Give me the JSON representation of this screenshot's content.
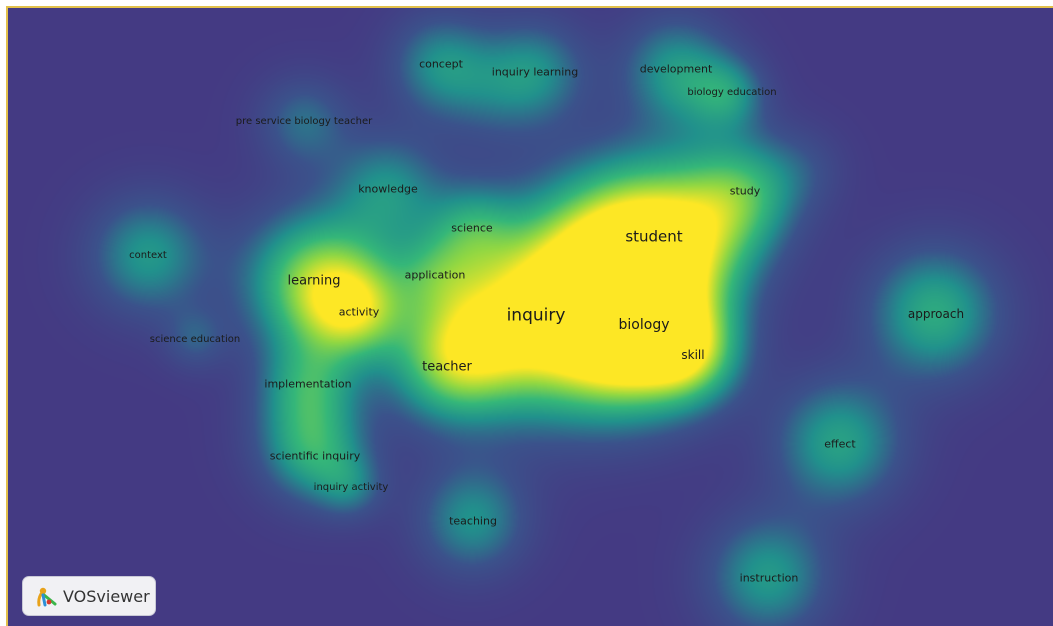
{
  "app": {
    "logo_text": "VOSviewer"
  },
  "colors": {
    "background": "#443a83",
    "frame": "#e2c04a",
    "density_scale": [
      "#443a83",
      "#3b528b",
      "#21918c",
      "#35b779",
      "#90d743",
      "#fde725"
    ]
  },
  "visualization": "density",
  "terms": [
    {
      "label": "inquiry",
      "weight": 1.0
    },
    {
      "label": "student",
      "weight": 0.85
    },
    {
      "label": "biology",
      "weight": 0.72
    },
    {
      "label": "skill",
      "weight": 0.5
    },
    {
      "label": "learning",
      "weight": 0.62
    },
    {
      "label": "activity",
      "weight": 0.42
    },
    {
      "label": "teacher",
      "weight": 0.52
    },
    {
      "label": "science",
      "weight": 0.34
    },
    {
      "label": "application",
      "weight": 0.3
    },
    {
      "label": "knowledge",
      "weight": 0.4
    },
    {
      "label": "study",
      "weight": 0.48
    },
    {
      "label": "context",
      "weight": 0.45
    },
    {
      "label": "science education",
      "weight": 0.22
    },
    {
      "label": "implementation",
      "weight": 0.36
    },
    {
      "label": "scientific inquiry",
      "weight": 0.38
    },
    {
      "label": "inquiry activity",
      "weight": 0.26
    },
    {
      "label": "teaching",
      "weight": 0.42
    },
    {
      "label": "approach",
      "weight": 0.55
    },
    {
      "label": "effect",
      "weight": 0.5
    },
    {
      "label": "instruction",
      "weight": 0.46
    },
    {
      "label": "concept",
      "weight": 0.4
    },
    {
      "label": "inquiry learning",
      "weight": 0.4
    },
    {
      "label": "development",
      "weight": 0.42
    },
    {
      "label": "biology education",
      "weight": 0.3
    },
    {
      "label": "pre service biology teacher",
      "weight": 0.3
    }
  ]
}
